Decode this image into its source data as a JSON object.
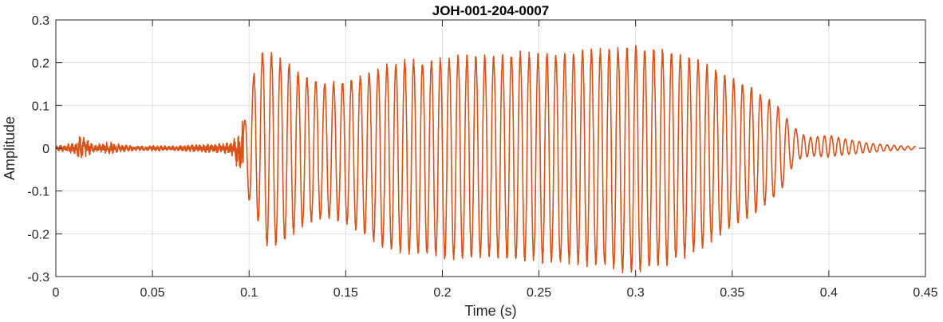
{
  "chart_data": {
    "type": "line",
    "title": "JOH-001-204-0007",
    "xlabel": "Time (s)",
    "ylabel": "Amplitude",
    "xlim": [
      0,
      0.45
    ],
    "ylim": [
      -0.3,
      0.3
    ],
    "x_ticks": [
      0,
      0.05,
      0.1,
      0.15,
      0.2,
      0.25,
      0.3,
      0.35,
      0.4,
      0.45
    ],
    "x_tick_labels": [
      "0",
      "0.05",
      "0.1",
      "0.15",
      "0.2",
      "0.25",
      "0.3",
      "0.35",
      "0.4",
      "0.45"
    ],
    "y_ticks": [
      -0.3,
      -0.2,
      -0.1,
      0,
      0.1,
      0.2,
      0.3
    ],
    "y_tick_labels": [
      "-0.3",
      "-0.2",
      "-0.1",
      "0",
      "0.1",
      "0.2",
      "0.3"
    ],
    "grid": true,
    "legend": "none",
    "line_color": "#D95319",
    "series": [
      {
        "envelope_upper": [
          [
            0,
            0.004
          ],
          [
            0.01,
            0.01
          ],
          [
            0.012,
            0.025
          ],
          [
            0.02,
            0.006
          ],
          [
            0.027,
            0.012
          ],
          [
            0.03,
            0.01
          ],
          [
            0.04,
            0.004
          ],
          [
            0.05,
            0.005
          ],
          [
            0.06,
            0.004
          ],
          [
            0.07,
            0.006
          ],
          [
            0.08,
            0.008
          ],
          [
            0.09,
            0.01
          ],
          [
            0.095,
            0.025
          ],
          [
            0.1,
            0.095
          ],
          [
            0.104,
            0.225
          ],
          [
            0.11,
            0.22
          ],
          [
            0.12,
            0.195
          ],
          [
            0.13,
            0.16
          ],
          [
            0.14,
            0.15
          ],
          [
            0.15,
            0.155
          ],
          [
            0.16,
            0.17
          ],
          [
            0.17,
            0.19
          ],
          [
            0.18,
            0.2
          ],
          [
            0.19,
            0.2
          ],
          [
            0.2,
            0.205
          ],
          [
            0.21,
            0.215
          ],
          [
            0.22,
            0.21
          ],
          [
            0.23,
            0.21
          ],
          [
            0.24,
            0.22
          ],
          [
            0.25,
            0.215
          ],
          [
            0.26,
            0.215
          ],
          [
            0.27,
            0.22
          ],
          [
            0.28,
            0.225
          ],
          [
            0.29,
            0.23
          ],
          [
            0.3,
            0.235
          ],
          [
            0.31,
            0.23
          ],
          [
            0.32,
            0.22
          ],
          [
            0.33,
            0.205
          ],
          [
            0.34,
            0.185
          ],
          [
            0.35,
            0.16
          ],
          [
            0.36,
            0.14
          ],
          [
            0.37,
            0.11
          ],
          [
            0.375,
            0.09
          ],
          [
            0.38,
            0.06
          ],
          [
            0.385,
            0.035
          ],
          [
            0.39,
            0.025
          ],
          [
            0.4,
            0.03
          ],
          [
            0.41,
            0.02
          ],
          [
            0.42,
            0.012
          ],
          [
            0.43,
            0.008
          ],
          [
            0.44,
            0.005
          ],
          [
            0.445,
            0.004
          ]
        ],
        "envelope_lower": [
          [
            0,
            -0.004
          ],
          [
            0.01,
            -0.01
          ],
          [
            0.013,
            -0.02
          ],
          [
            0.02,
            -0.006
          ],
          [
            0.027,
            -0.01
          ],
          [
            0.03,
            -0.008
          ],
          [
            0.04,
            -0.004
          ],
          [
            0.05,
            -0.005
          ],
          [
            0.06,
            -0.004
          ],
          [
            0.07,
            -0.006
          ],
          [
            0.08,
            -0.008
          ],
          [
            0.09,
            -0.01
          ],
          [
            0.097,
            -0.055
          ],
          [
            0.1,
            -0.12
          ],
          [
            0.104,
            -0.16
          ],
          [
            0.11,
            -0.23
          ],
          [
            0.12,
            -0.205
          ],
          [
            0.13,
            -0.17
          ],
          [
            0.14,
            -0.16
          ],
          [
            0.15,
            -0.17
          ],
          [
            0.16,
            -0.2
          ],
          [
            0.17,
            -0.23
          ],
          [
            0.18,
            -0.24
          ],
          [
            0.19,
            -0.245
          ],
          [
            0.2,
            -0.25
          ],
          [
            0.21,
            -0.255
          ],
          [
            0.22,
            -0.25
          ],
          [
            0.23,
            -0.25
          ],
          [
            0.24,
            -0.255
          ],
          [
            0.25,
            -0.26
          ],
          [
            0.26,
            -0.26
          ],
          [
            0.27,
            -0.265
          ],
          [
            0.28,
            -0.27
          ],
          [
            0.29,
            -0.28
          ],
          [
            0.3,
            -0.285
          ],
          [
            0.31,
            -0.275
          ],
          [
            0.32,
            -0.26
          ],
          [
            0.33,
            -0.24
          ],
          [
            0.34,
            -0.21
          ],
          [
            0.35,
            -0.18
          ],
          [
            0.36,
            -0.155
          ],
          [
            0.37,
            -0.12
          ],
          [
            0.375,
            -0.1
          ],
          [
            0.38,
            -0.05
          ],
          [
            0.385,
            -0.025
          ],
          [
            0.39,
            -0.018
          ],
          [
            0.4,
            -0.02
          ],
          [
            0.41,
            -0.014
          ],
          [
            0.42,
            -0.01
          ],
          [
            0.43,
            -0.006
          ],
          [
            0.44,
            -0.004
          ],
          [
            0.445,
            -0.003
          ]
        ],
        "dominant_period_s": 0.0046,
        "decay_oscillation_period_s": 0.0036
      }
    ]
  }
}
